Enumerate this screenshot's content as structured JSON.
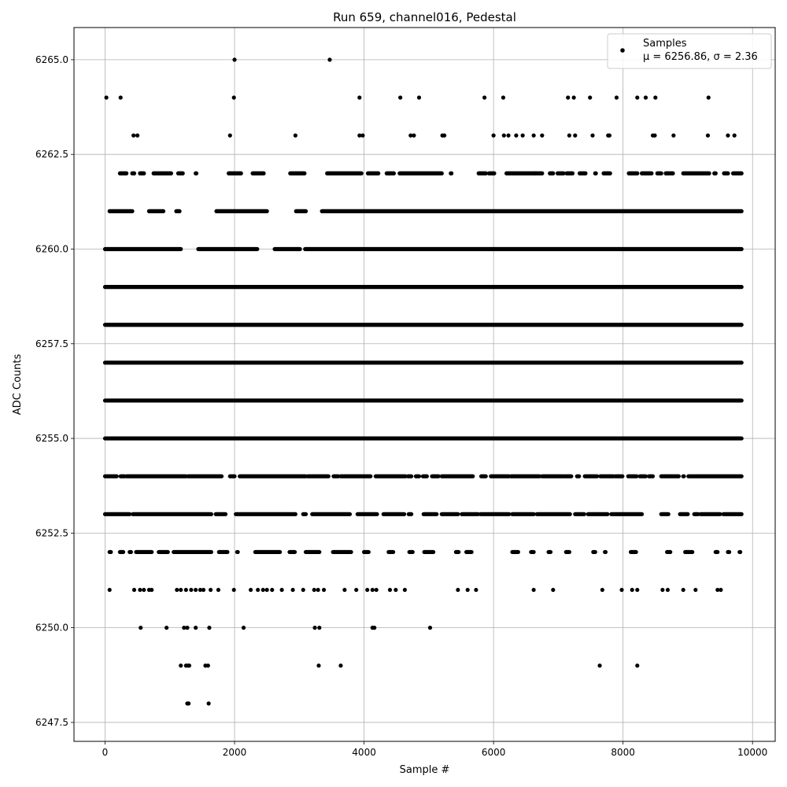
{
  "chart_data": {
    "type": "scatter",
    "title": "Run 659, channel016, Pedestal",
    "xlabel": "Sample #",
    "ylabel": "ADC Counts",
    "xlim": [
      -480,
      10350
    ],
    "ylim": [
      6247.0,
      6265.85
    ],
    "xticks": [
      0,
      2000,
      4000,
      6000,
      8000,
      10000
    ],
    "yticks": [
      6247.5,
      6250.0,
      6252.5,
      6255.0,
      6257.5,
      6260.0,
      6262.5,
      6265.0
    ],
    "xtick_labels": [
      "0",
      "2000",
      "4000",
      "6000",
      "8000",
      "10000"
    ],
    "ytick_labels": [
      "6247.5",
      "6250.0",
      "6252.5",
      "6255.0",
      "6257.5",
      "6260.0",
      "6262.5",
      "6265.0"
    ],
    "grid": true,
    "legend_position": "top-right",
    "marker_color": "#000000",
    "series": [
      {
        "name": "Samples",
        "legend_label": "Samples",
        "stats_label": "μ = 6256.86, σ = 2.36",
        "mean": 6256.86,
        "sigma": 2.36,
        "points": [
          [
            2000,
            6265
          ],
          [
            3470,
            6265
          ],
          [
            20,
            6264
          ],
          [
            240,
            6264
          ],
          [
            1990,
            6264
          ],
          [
            3930,
            6264
          ],
          [
            4560,
            6264
          ],
          [
            4850,
            6264
          ],
          [
            5860,
            6264
          ],
          [
            6150,
            6264
          ],
          [
            7150,
            6264
          ],
          [
            7240,
            6264
          ],
          [
            7490,
            6264
          ],
          [
            7900,
            6264
          ],
          [
            8220,
            6264
          ],
          [
            8350,
            6264
          ],
          [
            8500,
            6264
          ],
          [
            9320,
            6264
          ],
          [
            440,
            6263
          ],
          [
            500,
            6263
          ],
          [
            1930,
            6263
          ],
          [
            2940,
            6263
          ],
          [
            3930,
            6263
          ],
          [
            3980,
            6263
          ],
          [
            4720,
            6263
          ],
          [
            4770,
            6263
          ],
          [
            5210,
            6263
          ],
          [
            5240,
            6263
          ],
          [
            6000,
            6263
          ],
          [
            6160,
            6263
          ],
          [
            6230,
            6263
          ],
          [
            6350,
            6263
          ],
          [
            6450,
            6263
          ],
          [
            6620,
            6263
          ],
          [
            6750,
            6263
          ],
          [
            7170,
            6263
          ],
          [
            7260,
            6263
          ],
          [
            7530,
            6263
          ],
          [
            7770,
            6263
          ],
          [
            7790,
            6263
          ],
          [
            8460,
            6263
          ],
          [
            8490,
            6263
          ],
          [
            8780,
            6263
          ],
          [
            9310,
            6263
          ],
          [
            9620,
            6263
          ],
          [
            9720,
            6263
          ],
          [
            1270,
            6248
          ],
          [
            1290,
            6248
          ],
          [
            1600,
            6248
          ],
          [
            1170,
            6249
          ],
          [
            1250,
            6249
          ],
          [
            1280,
            6249
          ],
          [
            1300,
            6249
          ],
          [
            1550,
            6249
          ],
          [
            1590,
            6249
          ],
          [
            3300,
            6249
          ],
          [
            3640,
            6249
          ],
          [
            7640,
            6249
          ],
          [
            8220,
            6249
          ],
          [
            550,
            6250
          ],
          [
            950,
            6250
          ],
          [
            1220,
            6250
          ],
          [
            1270,
            6250
          ],
          [
            1400,
            6250
          ],
          [
            1610,
            6250
          ],
          [
            2140,
            6250
          ],
          [
            3240,
            6250
          ],
          [
            3310,
            6250
          ],
          [
            4130,
            6250
          ],
          [
            4160,
            6250
          ],
          [
            5020,
            6250
          ],
          [
            70,
            6251
          ],
          [
            450,
            6251
          ],
          [
            540,
            6251
          ],
          [
            600,
            6251
          ],
          [
            680,
            6251
          ],
          [
            720,
            6251
          ],
          [
            1110,
            6251
          ],
          [
            1170,
            6251
          ],
          [
            1250,
            6251
          ],
          [
            1330,
            6251
          ],
          [
            1400,
            6251
          ],
          [
            1470,
            6251
          ],
          [
            1520,
            6251
          ],
          [
            1630,
            6251
          ],
          [
            1750,
            6251
          ],
          [
            1990,
            6251
          ],
          [
            2250,
            6251
          ],
          [
            2360,
            6251
          ],
          [
            2440,
            6251
          ],
          [
            2500,
            6251
          ],
          [
            2580,
            6251
          ],
          [
            2730,
            6251
          ],
          [
            2900,
            6251
          ],
          [
            3060,
            6251
          ],
          [
            3230,
            6251
          ],
          [
            3290,
            6251
          ],
          [
            3380,
            6251
          ],
          [
            3700,
            6251
          ],
          [
            3880,
            6251
          ],
          [
            4050,
            6251
          ],
          [
            4130,
            6251
          ],
          [
            4190,
            6251
          ],
          [
            4400,
            6251
          ],
          [
            4490,
            6251
          ],
          [
            4630,
            6251
          ],
          [
            5450,
            6251
          ],
          [
            5600,
            6251
          ],
          [
            5730,
            6251
          ],
          [
            6620,
            6251
          ],
          [
            6920,
            6251
          ],
          [
            7680,
            6251
          ],
          [
            7980,
            6251
          ],
          [
            8140,
            6251
          ],
          [
            8220,
            6251
          ],
          [
            8610,
            6251
          ],
          [
            8690,
            6251
          ],
          [
            8930,
            6251
          ],
          [
            9120,
            6251
          ],
          [
            9460,
            6251
          ],
          [
            9510,
            6251
          ]
        ],
        "dense_levels": [
          {
            "y": 6252,
            "x_ranges": [
              [
                70,
                90
              ],
              [
                230,
                280
              ],
              [
                380,
                400
              ],
              [
                480,
                720
              ],
              [
                830,
                970
              ],
              [
                1060,
                1640
              ],
              [
                1760,
                1890
              ],
              [
                2040,
                2050
              ],
              [
                2320,
                2700
              ],
              [
                2850,
                2930
              ],
              [
                3100,
                3310
              ],
              [
                3520,
                3800
              ],
              [
                4000,
                4070
              ],
              [
                4380,
                4450
              ],
              [
                4700,
                4750
              ],
              [
                4930,
                5070
              ],
              [
                5420,
                5460
              ],
              [
                5580,
                5660
              ],
              [
                6290,
                6380
              ],
              [
                6580,
                6620
              ],
              [
                6850,
                6880
              ],
              [
                7120,
                7170
              ],
              [
                7540,
                7570
              ],
              [
                7720,
                7730
              ],
              [
                8120,
                8200
              ],
              [
                8680,
                8730
              ],
              [
                8960,
                9070
              ],
              [
                9430,
                9460
              ],
              [
                9620,
                9640
              ],
              [
                9800,
                9810
              ]
            ]
          },
          {
            "y": 6253,
            "x_ranges": [
              [
                0,
                380
              ],
              [
                430,
                1640
              ],
              [
                1710,
                1860
              ],
              [
                2020,
                2940
              ],
              [
                3060,
                3100
              ],
              [
                3200,
                3780
              ],
              [
                3900,
                4200
              ],
              [
                4300,
                4620
              ],
              [
                4690,
                4730
              ],
              [
                4920,
                5120
              ],
              [
                5200,
                5450
              ],
              [
                5510,
                5760
              ],
              [
                5800,
                6240
              ],
              [
                6290,
                6620
              ],
              [
                6670,
                7180
              ],
              [
                7260,
                7400
              ],
              [
                7460,
                7760
              ],
              [
                7820,
                8290
              ],
              [
                8590,
                8700
              ],
              [
                8880,
                9000
              ],
              [
                9100,
                9160
              ],
              [
                9200,
                9500
              ],
              [
                9550,
                9830
              ]
            ]
          },
          {
            "y": 6254,
            "x_ranges": [
              [
                0,
                180
              ],
              [
                240,
                300
              ],
              [
                330,
                1250
              ],
              [
                1280,
                1800
              ],
              [
                1930,
                2000
              ],
              [
                2080,
                3100
              ],
              [
                3130,
                3450
              ],
              [
                3530,
                3600
              ],
              [
                3640,
                4100
              ],
              [
                4180,
                4640
              ],
              [
                4680,
                4730
              ],
              [
                4800,
                4850
              ],
              [
                4910,
                4970
              ],
              [
                5050,
                5150
              ],
              [
                5200,
                5680
              ],
              [
                5810,
                5880
              ],
              [
                5960,
                6240
              ],
              [
                6270,
                6710
              ],
              [
                6750,
                7070
              ],
              [
                7090,
                7200
              ],
              [
                7290,
                7320
              ],
              [
                7410,
                7600
              ],
              [
                7650,
                7850
              ],
              [
                7880,
                7990
              ],
              [
                8080,
                8210
              ],
              [
                8260,
                8350
              ],
              [
                8400,
                8460
              ],
              [
                8590,
                8860
              ],
              [
                8930,
                8940
              ],
              [
                9010,
                9830
              ]
            ]
          },
          {
            "y": 6255,
            "x_ranges": [
              [
                0,
                9830
              ]
            ]
          },
          {
            "y": 6256,
            "x_ranges": [
              [
                0,
                9830
              ]
            ]
          },
          {
            "y": 6257,
            "x_ranges": [
              [
                0,
                9830
              ]
            ]
          },
          {
            "y": 6258,
            "x_ranges": [
              [
                0,
                9830
              ]
            ]
          },
          {
            "y": 6259,
            "x_ranges": [
              [
                0,
                9830
              ]
            ]
          },
          {
            "y": 6260,
            "x_ranges": [
              [
                0,
                1170
              ],
              [
                1440,
                2350
              ],
              [
                2620,
                3010
              ],
              [
                3090,
                9830
              ]
            ]
          },
          {
            "y": 6261,
            "x_ranges": [
              [
                70,
                420
              ],
              [
                680,
                900
              ],
              [
                1100,
                1150
              ],
              [
                1720,
                2500
              ],
              [
                2950,
                3100
              ],
              [
                3350,
                9830
              ]
            ]
          },
          {
            "y": 6262,
            "x_ranges": [
              [
                230,
                330
              ],
              [
                420,
                450
              ],
              [
                540,
                600
              ],
              [
                750,
                1020
              ],
              [
                1130,
                1200
              ],
              [
                1400,
                1410
              ],
              [
                1910,
                2100
              ],
              [
                2280,
                2450
              ],
              [
                2860,
                3080
              ],
              [
                3430,
                3960
              ],
              [
                4060,
                4220
              ],
              [
                4350,
                4460
              ],
              [
                4550,
                5200
              ],
              [
                5340,
                5350
              ],
              [
                5770,
                5880
              ],
              [
                5930,
                6010
              ],
              [
                6200,
                6640
              ],
              [
                6650,
                6750
              ],
              [
                6870,
                6920
              ],
              [
                6990,
                7080
              ],
              [
                7130,
                7220
              ],
              [
                7330,
                7420
              ],
              [
                7570,
                7580
              ],
              [
                7700,
                7800
              ],
              [
                8090,
                8220
              ],
              [
                8290,
                8440
              ],
              [
                8530,
                8590
              ],
              [
                8660,
                8770
              ],
              [
                8930,
                9330
              ],
              [
                9410,
                9430
              ],
              [
                9560,
                9620
              ],
              [
                9700,
                9830
              ]
            ]
          }
        ]
      }
    ]
  }
}
